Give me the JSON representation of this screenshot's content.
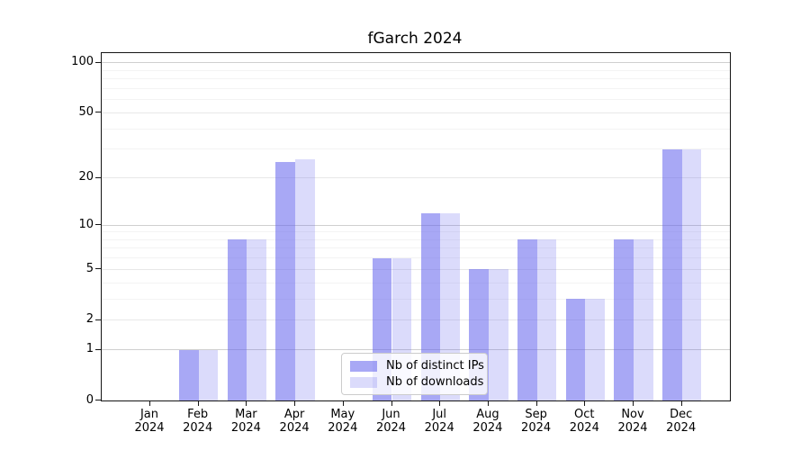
{
  "page": {
    "background_color": "#ffffff",
    "text_color": "#000000"
  },
  "chart_data": {
    "type": "bar",
    "title": "fGarch 2024",
    "categories": [
      "Jan",
      "Feb",
      "Mar",
      "Apr",
      "May",
      "Jun",
      "Jul",
      "Aug",
      "Sep",
      "Oct",
      "Nov",
      "Dec"
    ],
    "category_year": "2024",
    "series": [
      {
        "name": "Nb of distinct IPs",
        "values": [
          0,
          1,
          8,
          25,
          0,
          6,
          12,
          5,
          8,
          3,
          8,
          30
        ],
        "color": "#6666ee",
        "alpha": 0.57
      },
      {
        "name": "Nb of downloads",
        "values": [
          0,
          1,
          8,
          26,
          0,
          6,
          12,
          5,
          8,
          3,
          8,
          30
        ],
        "color": "#6666ee",
        "alpha": 0.235
      }
    ],
    "xlabel": "",
    "ylabel": "",
    "yscale": "symlog",
    "yticks": [
      0,
      1,
      2,
      5,
      10,
      20,
      50,
      100
    ],
    "ylim": [
      0,
      114
    ],
    "grid": "horizontal",
    "legend_position": "inside-lower-center"
  }
}
